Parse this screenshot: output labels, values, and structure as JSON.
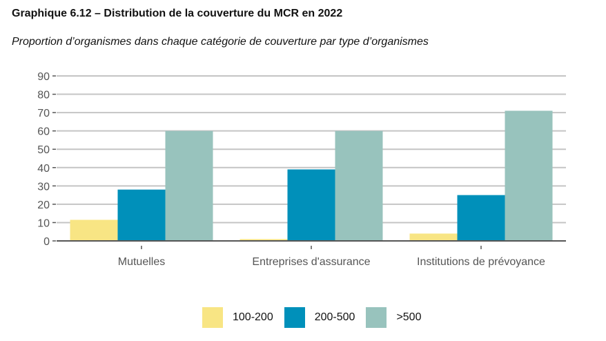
{
  "title": "Graphique 6.12 – Distribution de la couverture du MCR en 2022",
  "subtitle": "Proportion d’organismes dans chaque catégorie de couverture par type d’organismes",
  "chart_data": {
    "type": "bar",
    "title": "Graphique 6.12 – Distribution de la couverture du MCR en 2022",
    "subtitle": "Proportion d’organismes dans chaque catégorie de couverture par type d’organismes",
    "categories": [
      "Mutuelles",
      "Entreprises d'assurance",
      "Institutions de prévoyance"
    ],
    "series": [
      {
        "name": "100-200",
        "color": "#F8E584",
        "values": [
          11.5,
          1,
          4
        ]
      },
      {
        "name": "200-500",
        "color": "#0090BA",
        "values": [
          28,
          39,
          25
        ]
      },
      {
        "name": ">500",
        "color": "#98C3BD",
        "values": [
          60,
          60,
          71
        ]
      }
    ],
    "xlabel": "",
    "ylabel": "",
    "ylim": [
      0,
      90
    ],
    "yticks": [
      0,
      10,
      20,
      30,
      40,
      50,
      60,
      70,
      80,
      90
    ],
    "grid": true,
    "legend_position": "bottom"
  }
}
